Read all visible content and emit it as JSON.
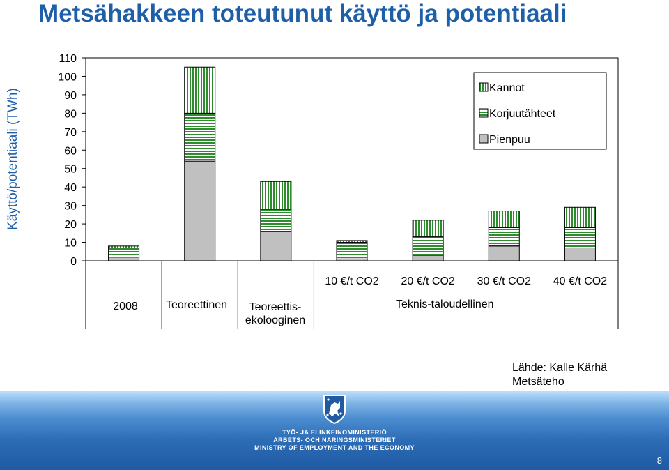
{
  "title": "Metsähakkeen toteutunut käyttö ja potentiaali",
  "source": {
    "line1": "Lähde: Kalle Kärhä",
    "line2": "Metsäteho"
  },
  "footer": {
    "line1": "TYÖ- JA ELINKEINOMINISTERIÖ",
    "line2": "ARBETS- OCH NÄRINGSMINISTERIET",
    "line3": "MINISTRY OF EMPLOYMENT AND THE ECONOMY",
    "page": "8"
  },
  "colors": {
    "title": "#1f5fa8",
    "green": "#2e8b2e",
    "grey": "#c0c0c0"
  },
  "chart_data": {
    "type": "bar",
    "stacked": true,
    "ylabel": "Käyttö/potentiaali (TWh)",
    "ylim": [
      0,
      110
    ],
    "yticks": [
      0,
      10,
      20,
      30,
      40,
      50,
      60,
      70,
      80,
      90,
      100,
      110
    ],
    "categories": [
      "2008",
      "Teoreettinen",
      "Teoreettis-ekolooginen",
      "10 €/t CO2",
      "20 €/t CO2",
      "30 €/t CO2",
      "40 €/t CO2"
    ],
    "category_labels": [
      "2008",
      "Teoreettinen",
      "Teoreettis-\nekolooginen",
      "10 €/t CO2",
      "20 €/t CO2",
      "30 €/t CO2",
      "40 €/t CO2"
    ],
    "group_label": "Teknis-taloudellinen",
    "series": [
      {
        "name": "Pienpuu",
        "values": [
          2,
          54,
          16,
          1,
          3,
          8,
          7
        ]
      },
      {
        "name": "Korjuutähteet",
        "values": [
          5,
          26,
          12,
          9,
          10,
          10,
          11
        ]
      },
      {
        "name": "Kannot",
        "values": [
          1,
          25,
          15,
          1,
          9,
          9,
          11
        ]
      }
    ],
    "legend": {
      "position": "top-right",
      "order": [
        "Kannot",
        "Korjuutähteet",
        "Pienpuu"
      ]
    },
    "grid": false
  }
}
